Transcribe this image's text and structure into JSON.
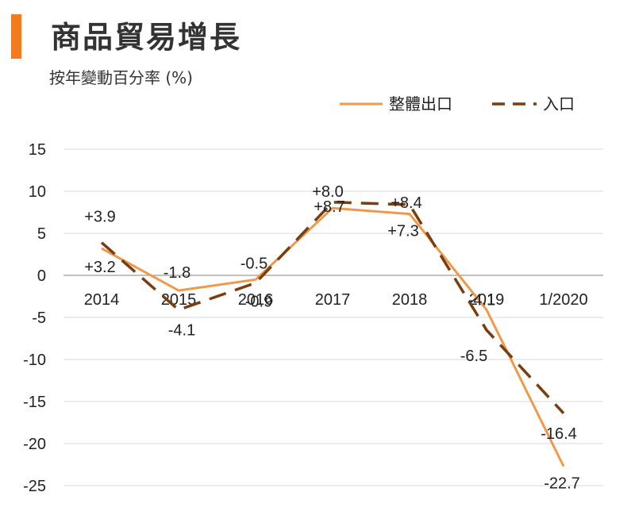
{
  "header": {
    "title": "商品貿易增長",
    "subtitle": "按年變動百分率 (%)",
    "accent_color": "#F47A20"
  },
  "chart_data": {
    "type": "line",
    "categories": [
      "2014",
      "2015",
      "2016",
      "2017",
      "2018",
      "2019",
      "1/2020"
    ],
    "ylim": [
      -25,
      15
    ],
    "yticks": [
      15,
      10,
      5,
      0,
      -5,
      -10,
      -15,
      -20,
      -25
    ],
    "grid": true,
    "legend": "top-right",
    "series": [
      {
        "name": "整體出口",
        "style": "solid",
        "color": "#F0994A",
        "values": [
          3.2,
          -1.8,
          -0.5,
          8.0,
          7.3,
          -4.1,
          -22.7
        ],
        "labels": [
          "+3.2",
          "-1.8",
          "-0.5",
          "+8.0",
          "+7.3",
          "-4.1",
          "-22.7"
        ]
      },
      {
        "name": "入口",
        "style": "dashed",
        "color": "#7A3D10",
        "values": [
          3.9,
          -4.1,
          -0.9,
          8.7,
          8.4,
          -6.5,
          -16.4
        ],
        "labels": [
          "+3.9",
          "-4.1",
          "-0.9",
          "+8.7",
          "+8.4",
          "-6.5",
          "-16.4"
        ]
      }
    ]
  }
}
